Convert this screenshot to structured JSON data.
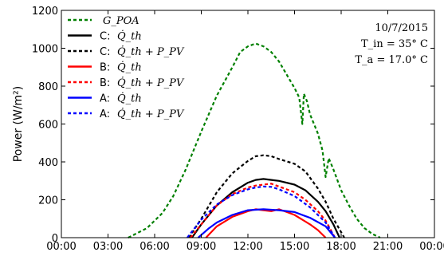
{
  "chart_data": {
    "type": "line",
    "ylabel": "Power (W/m²)",
    "ylim": [
      0,
      1200
    ],
    "xlim": [
      0,
      24
    ],
    "grid": false,
    "legend_position": "upper-left",
    "yticks": [
      0,
      200,
      400,
      600,
      800,
      1000,
      1200
    ],
    "ytick_labels": [
      "0",
      "200",
      "400",
      "600",
      "800",
      "1000",
      "1200"
    ],
    "xticks": [
      0,
      3,
      6,
      9,
      12,
      15,
      18,
      21,
      24
    ],
    "xtick_labels": [
      "00:00",
      "03:00",
      "06:00",
      "09:00",
      "12:00",
      "15:00",
      "18:00",
      "21:00",
      "00:00"
    ],
    "annotations": [
      "10/7/2015",
      "T_in = 35° C",
      "T_a = 17.0° C"
    ],
    "series": [
      {
        "name": "G_POA",
        "legend_label": "G_POA",
        "color": "#008000",
        "dash": "dashed",
        "x": [
          4.3,
          5.5,
          6.5,
          7.2,
          8.0,
          9.0,
          10.0,
          11.0,
          11.5,
          12.0,
          12.5,
          13.0,
          13.5,
          14.0,
          14.5,
          15.0,
          15.3,
          15.5,
          15.6,
          15.8,
          16.0,
          16.5,
          16.8,
          17.0,
          17.2,
          17.5,
          18.0,
          18.5,
          19.0,
          19.5,
          20.0,
          20.5
        ],
        "y": [
          0,
          50,
          130,
          220,
          360,
          560,
          750,
          900,
          980,
          1010,
          1025,
          1010,
          980,
          930,
          860,
          790,
          740,
          600,
          760,
          720,
          650,
          550,
          460,
          320,
          420,
          360,
          250,
          170,
          100,
          50,
          20,
          0
        ]
      },
      {
        "name": "C: Q_th",
        "legend_label": "Q̇_th",
        "legend_prefix": "C:",
        "color": "#000000",
        "dash": "solid",
        "x": [
          8.4,
          9.0,
          10.0,
          11.0,
          12.0,
          12.5,
          13.0,
          13.5,
          14.0,
          15.0,
          15.7,
          16.5,
          17.0,
          17.5,
          17.9
        ],
        "y": [
          0,
          70,
          170,
          240,
          290,
          305,
          310,
          305,
          300,
          280,
          250,
          190,
          140,
          70,
          0
        ]
      },
      {
        "name": "C: Q_th + P_PV",
        "legend_label": "Q̇_th + P_PV",
        "legend_prefix": "C:",
        "color": "#000000",
        "dash": "dashed",
        "x": [
          8.2,
          9.0,
          10.0,
          11.0,
          12.0,
          12.5,
          13.0,
          13.5,
          14.0,
          15.0,
          15.7,
          16.5,
          17.0,
          17.5,
          18.2
        ],
        "y": [
          0,
          100,
          240,
          340,
          405,
          430,
          435,
          430,
          415,
          390,
          350,
          260,
          190,
          100,
          0
        ]
      },
      {
        "name": "B: Q_th",
        "legend_label": "Q̇_th",
        "legend_prefix": "B:",
        "color": "#ff0000",
        "dash": "solid",
        "x": [
          9.3,
          10.0,
          11.0,
          11.5,
          12.0,
          12.5,
          13.0,
          13.5,
          14.0,
          14.5,
          15.0,
          16.0,
          16.5,
          17.0
        ],
        "y": [
          0,
          60,
          110,
          125,
          140,
          150,
          145,
          140,
          150,
          135,
          120,
          70,
          40,
          0
        ]
      },
      {
        "name": "B: Q_th + P_PV",
        "legend_label": "Q̇_th + P_PV",
        "legend_prefix": "B:",
        "color": "#ff0000",
        "dash": "dashed",
        "x": [
          8.3,
          9.0,
          10.0,
          11.0,
          12.0,
          12.5,
          13.0,
          13.5,
          14.0,
          15.0,
          15.7,
          16.5,
          17.0,
          17.6
        ],
        "y": [
          0,
          70,
          170,
          230,
          265,
          275,
          280,
          285,
          270,
          240,
          200,
          140,
          90,
          0
        ]
      },
      {
        "name": "A: Q_th",
        "legend_label": "Q̇_th",
        "legend_prefix": "A:",
        "color": "#0000ff",
        "dash": "solid",
        "x": [
          8.8,
          9.5,
          10.0,
          11.0,
          12.0,
          13.0,
          14.0,
          15.0,
          16.0,
          17.0,
          17.6
        ],
        "y": [
          0,
          50,
          80,
          120,
          145,
          150,
          145,
          135,
          105,
          60,
          0
        ]
      },
      {
        "name": "A: Q_th + P_PV",
        "legend_label": "Q̇_th + P_PV",
        "legend_prefix": "A:",
        "color": "#0000ff",
        "dash": "dashed",
        "x": [
          8.1,
          9.0,
          10.0,
          11.0,
          12.0,
          12.5,
          13.0,
          13.5,
          14.0,
          15.0,
          16.0,
          17.0,
          17.6
        ],
        "y": [
          0,
          95,
          175,
          225,
          255,
          265,
          270,
          268,
          255,
          220,
          160,
          80,
          0
        ]
      }
    ]
  }
}
